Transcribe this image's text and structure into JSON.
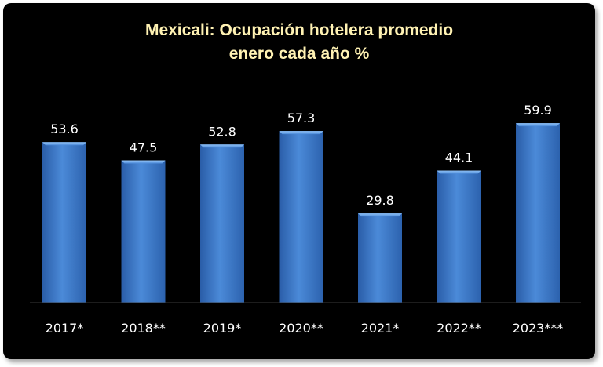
{
  "chart_data": {
    "type": "bar",
    "title_line1": "Mexicali: Ocupación hotelera promedio",
    "title_line2": "enero cada año %",
    "categories": [
      "2017*",
      "2018**",
      "2019*",
      "2020**",
      "2021*",
      "2022**",
      "2023***"
    ],
    "values": [
      53.6,
      47.5,
      52.8,
      57.3,
      29.8,
      44.1,
      59.9
    ],
    "value_labels": [
      "53.6",
      "47.5",
      "52.8",
      "57.3",
      "29.8",
      "44.1",
      "59.9"
    ],
    "ylim": [
      0,
      70
    ],
    "grid": false,
    "colors": {
      "background": "#000000",
      "bar": "#3b78c8",
      "bar_light": "#6aa5ea",
      "bar_dark": "#1f4f95",
      "title": "#fff2b3",
      "text": "#ffffff"
    }
  }
}
